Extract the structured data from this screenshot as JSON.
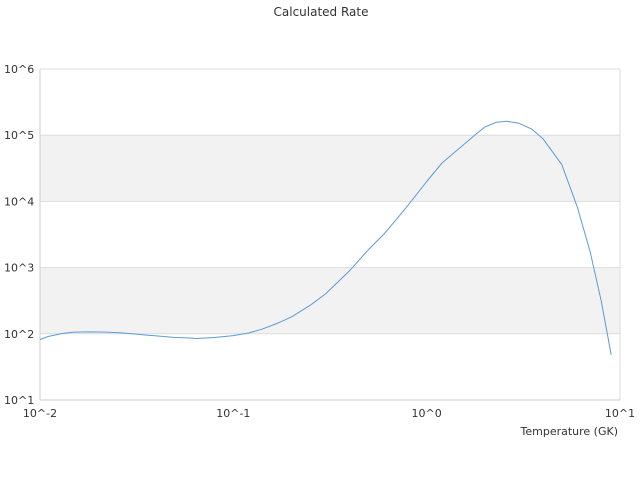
{
  "chart_data": {
    "type": "line",
    "title": "Calculated Rate",
    "xlabel": "Temperature (GK)",
    "ylabel": "",
    "xscale": "log",
    "yscale": "log",
    "xlim": [
      0.01,
      10
    ],
    "ylim": [
      10,
      1000000
    ],
    "x_tick_labels": [
      "10^-2",
      "10^-1",
      "10^0",
      "10^1"
    ],
    "y_tick_labels": [
      "10^1",
      "10^2",
      "10^3",
      "10^4",
      "10^5",
      "10^6"
    ],
    "grid": "alternating horizontal bands",
    "legend": "none",
    "line_color": "#5b9bd5",
    "band_color": "#f2f2f2",
    "series": [
      {
        "x": [
          0.01,
          0.011,
          0.012,
          0.013,
          0.015,
          0.018,
          0.022,
          0.027,
          0.03,
          0.035,
          0.04,
          0.05,
          0.056,
          0.065,
          0.07,
          0.08,
          0.1,
          0.12,
          0.14,
          0.17,
          0.2,
          0.25,
          0.3,
          0.4,
          0.5,
          0.6,
          0.7,
          0.8,
          1.0,
          1.2,
          1.5,
          1.8,
          2.0,
          2.3,
          2.6,
          3.0,
          3.5,
          4.0,
          5.0,
          6.0,
          7.0,
          8.0,
          9.0
        ],
        "y": [
          82,
          91,
          96,
          101,
          106,
          107,
          106,
          103,
          100,
          96,
          93,
          88,
          87,
          85,
          86,
          88,
          94,
          103,
          117,
          145,
          180,
          270,
          400,
          900,
          1870,
          3200,
          5400,
          8700,
          20000,
          38000,
          66000,
          104000,
          133000,
          157000,
          162000,
          152000,
          123000,
          88000,
          36000,
          8400,
          1750,
          310,
          48
        ]
      }
    ]
  }
}
